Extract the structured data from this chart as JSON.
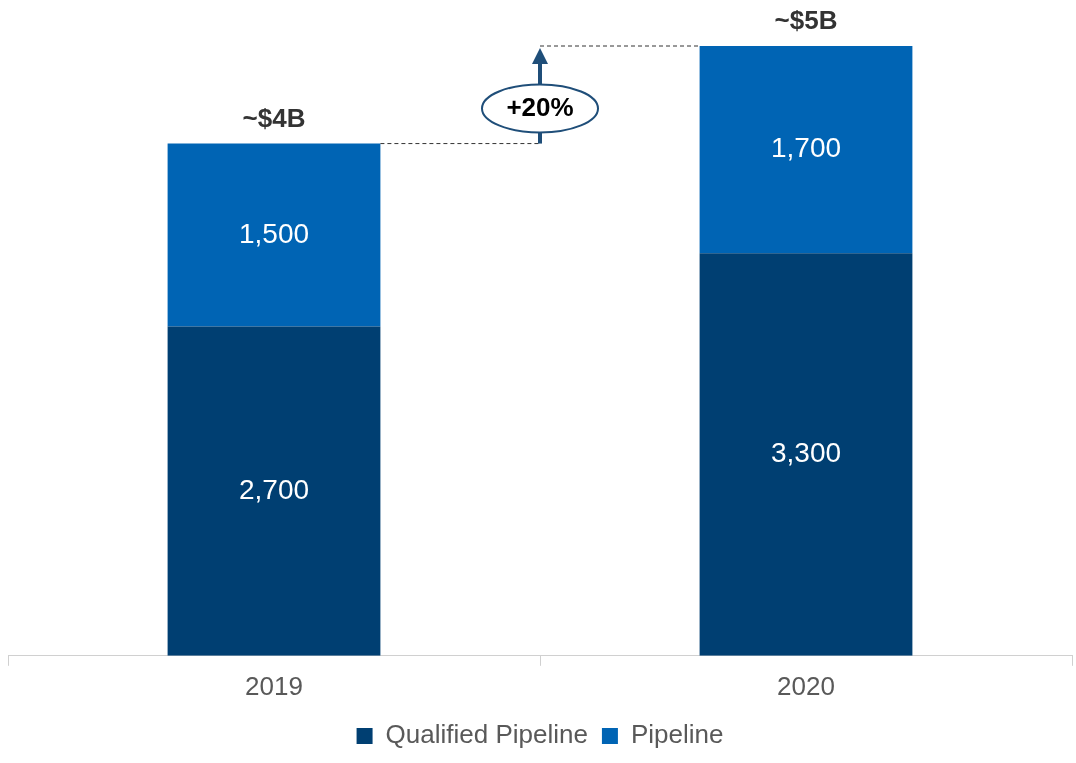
{
  "chart_data": {
    "type": "bar",
    "stacked": true,
    "categories": [
      "2019",
      "2020"
    ],
    "series": [
      {
        "name": "Qualified Pipeline",
        "color": "#003f72",
        "values": [
          2700,
          3300
        ],
        "value_labels": [
          "2,700",
          "3,300"
        ]
      },
      {
        "name": "Pipeline",
        "color": "#0064b4",
        "values": [
          1500,
          1700
        ],
        "value_labels": [
          "1,500",
          "1,700"
        ]
      }
    ],
    "totals": [
      "~$4B",
      "~$5B"
    ],
    "annotations": [
      "+20%"
    ],
    "legend": "bottom",
    "grid": false,
    "tick_labels": "x"
  }
}
